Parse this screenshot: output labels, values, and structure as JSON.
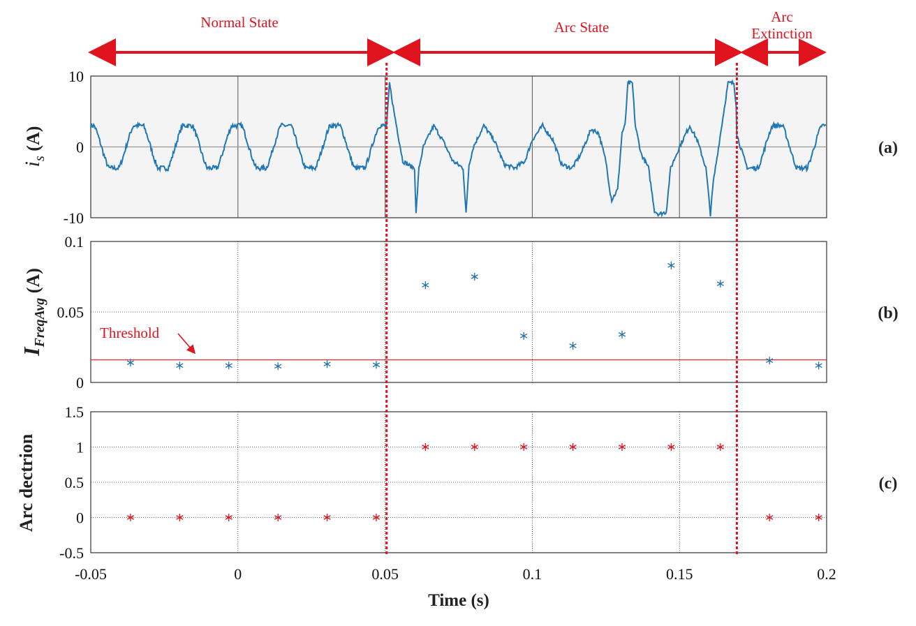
{
  "states": {
    "normal": "Normal State",
    "arc": "Arc State",
    "extinction_line1": "Arc",
    "extinction_line2": "Extinction"
  },
  "colors": {
    "signal": "#1f77b4",
    "marker_b": "#1f6fa8",
    "marker_c": "#e0141e",
    "threshold": "#e0141e",
    "boundary": "#e0141e",
    "panel_a_bg": "#f4f4f4"
  },
  "xaxis": {
    "label": "Time (s)",
    "ticks": [
      "-0.05",
      "0",
      "0.05",
      "0.1",
      "0.15",
      "0.2"
    ],
    "values": [
      -0.05,
      0,
      0.05,
      0.1,
      0.15,
      0.2
    ],
    "range": [
      -0.05,
      0.2
    ]
  },
  "boundaries": [
    0.0505,
    0.1695
  ],
  "chart_data": [
    {
      "id": "a",
      "type": "line",
      "panel_tag": "(a)",
      "ylabel_main": "i",
      "ylabel_sub": "s",
      "ylabel_unit": " (A)",
      "yticks": [
        "10",
        "0",
        "-10"
      ],
      "ytick_values": [
        10,
        0,
        -10
      ],
      "ylim": [
        -10,
        10
      ],
      "grid_x": [
        0,
        0.05,
        0.1,
        0.15
      ],
      "series": [
        {
          "segments": [
            {
              "type": "sine",
              "x": [
                -0.05,
                0.0505
              ],
              "amplitude": 3,
              "period": 0.0167
            },
            {
              "type": "fault",
              "x": [
                0.0505,
                0.1695
              ],
              "peaks": [
                {
                  "x": 0.0515,
                  "y": 9
                },
                {
                  "x": 0.0605,
                  "y": -9.5
                },
                {
                  "x": 0.0775,
                  "y": -9.5
                },
                {
                  "x": 0.127,
                  "y": -7.5
                },
                {
                  "x": 0.133,
                  "y": 9
                },
                {
                  "x": 0.143,
                  "y": -9.5
                },
                {
                  "x": 0.161,
                  "y": -9.5
                },
                {
                  "x": 0.167,
                  "y": 9
                }
              ]
            },
            {
              "type": "sine",
              "x": [
                0.1695,
                0.2
              ],
              "amplitude": 3,
              "period": 0.0167
            }
          ]
        }
      ]
    },
    {
      "id": "b",
      "type": "scatter",
      "panel_tag": "(b)",
      "ylabel_main": "I",
      "ylabel_sub": "FreqAvg",
      "ylabel_unit": " (A)",
      "yticks": [
        "0.1",
        "0.05",
        "0"
      ],
      "ytick_values": [
        0.1,
        0.05,
        0
      ],
      "ylim": [
        0,
        0.1
      ],
      "threshold": 0.016,
      "threshold_label": "Threshold",
      "points": [
        {
          "x": -0.0365,
          "y": 0.014
        },
        {
          "x": -0.0198,
          "y": 0.012
        },
        {
          "x": -0.0031,
          "y": 0.012
        },
        {
          "x": 0.0136,
          "y": 0.0115
        },
        {
          "x": 0.0303,
          "y": 0.013
        },
        {
          "x": 0.047,
          "y": 0.0125
        },
        {
          "x": 0.0637,
          "y": 0.069
        },
        {
          "x": 0.0804,
          "y": 0.075
        },
        {
          "x": 0.0971,
          "y": 0.033
        },
        {
          "x": 0.1138,
          "y": 0.026
        },
        {
          "x": 0.1305,
          "y": 0.034
        },
        {
          "x": 0.1472,
          "y": 0.083
        },
        {
          "x": 0.1639,
          "y": 0.07
        },
        {
          "x": 0.1806,
          "y": 0.0155
        },
        {
          "x": 0.1973,
          "y": 0.012
        }
      ]
    },
    {
      "id": "c",
      "type": "scatter",
      "panel_tag": "(c)",
      "ylabel_main": "Arc dectrion",
      "yticks": [
        "1.5",
        "1",
        "0.5",
        "0",
        "-0.5"
      ],
      "ytick_values": [
        1.5,
        1,
        0.5,
        0,
        -0.5
      ],
      "ylim": [
        -0.5,
        1.5
      ],
      "points": [
        {
          "x": -0.0365,
          "y": 0
        },
        {
          "x": -0.0198,
          "y": 0
        },
        {
          "x": -0.0031,
          "y": 0
        },
        {
          "x": 0.0136,
          "y": 0
        },
        {
          "x": 0.0303,
          "y": 0
        },
        {
          "x": 0.047,
          "y": 0
        },
        {
          "x": 0.0637,
          "y": 1
        },
        {
          "x": 0.0804,
          "y": 1
        },
        {
          "x": 0.0971,
          "y": 1
        },
        {
          "x": 0.1138,
          "y": 1
        },
        {
          "x": 0.1305,
          "y": 1
        },
        {
          "x": 0.1472,
          "y": 1
        },
        {
          "x": 0.1639,
          "y": 1
        },
        {
          "x": 0.1806,
          "y": 0
        },
        {
          "x": 0.1973,
          "y": 0
        }
      ]
    }
  ]
}
